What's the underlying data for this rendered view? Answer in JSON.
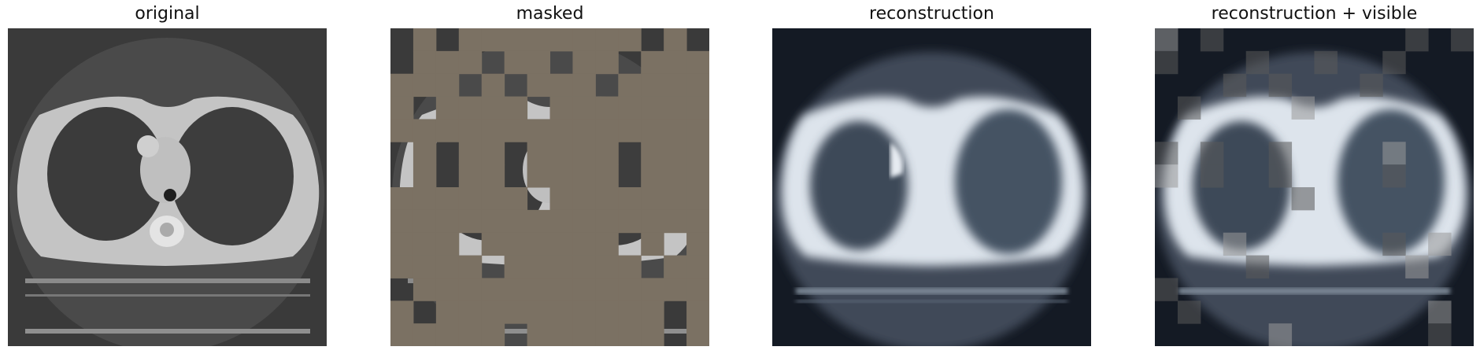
{
  "panels": [
    {
      "title": "original"
    },
    {
      "title": "masked"
    },
    {
      "title": "reconstruction"
    },
    {
      "title": "reconstruction + visible"
    }
  ],
  "colors": {
    "mask_fill": "#7b7163",
    "ct_background": "#3a3a3a",
    "recon_background": "#141a24"
  },
  "visible_patches": [
    [
      1,
      0
    ],
    [
      3,
      0
    ],
    [
      4,
      0
    ],
    [
      5,
      0
    ],
    [
      6,
      0
    ],
    [
      7,
      0
    ],
    [
      8,
      0
    ],
    [
      9,
      0
    ],
    [
      10,
      0
    ],
    [
      12,
      0
    ],
    [
      1,
      1
    ],
    [
      2,
      1
    ],
    [
      3,
      1
    ],
    [
      5,
      1
    ],
    [
      6,
      1
    ],
    [
      8,
      1
    ],
    [
      9,
      1
    ],
    [
      11,
      1
    ],
    [
      12,
      1
    ],
    [
      13,
      1
    ],
    [
      0,
      2
    ],
    [
      1,
      2
    ],
    [
      2,
      2
    ],
    [
      4,
      2
    ],
    [
      6,
      2
    ],
    [
      7,
      2
    ],
    [
      8,
      2
    ],
    [
      10,
      2
    ],
    [
      11,
      2
    ],
    [
      12,
      2
    ],
    [
      13,
      2
    ],
    [
      0,
      3
    ],
    [
      2,
      3
    ],
    [
      3,
      3
    ],
    [
      4,
      3
    ],
    [
      5,
      3
    ],
    [
      7,
      3
    ],
    [
      8,
      3
    ],
    [
      9,
      3
    ],
    [
      10,
      3
    ],
    [
      11,
      3
    ],
    [
      12,
      3
    ],
    [
      13,
      3
    ],
    [
      0,
      4
    ],
    [
      1,
      4
    ],
    [
      2,
      4
    ],
    [
      3,
      4
    ],
    [
      4,
      4
    ],
    [
      5,
      4
    ],
    [
      6,
      4
    ],
    [
      7,
      4
    ],
    [
      8,
      4
    ],
    [
      9,
      4
    ],
    [
      10,
      4
    ],
    [
      11,
      4
    ],
    [
      12,
      4
    ],
    [
      13,
      4
    ],
    [
      1,
      5
    ],
    [
      3,
      5
    ],
    [
      4,
      5
    ],
    [
      6,
      5
    ],
    [
      7,
      5
    ],
    [
      8,
      5
    ],
    [
      9,
      5
    ],
    [
      11,
      5
    ],
    [
      12,
      5
    ],
    [
      13,
      5
    ],
    [
      1,
      6
    ],
    [
      3,
      6
    ],
    [
      4,
      6
    ],
    [
      6,
      6
    ],
    [
      7,
      6
    ],
    [
      8,
      6
    ],
    [
      9,
      6
    ],
    [
      11,
      6
    ],
    [
      12,
      6
    ],
    [
      13,
      6
    ],
    [
      0,
      7
    ],
    [
      1,
      7
    ],
    [
      2,
      7
    ],
    [
      3,
      7
    ],
    [
      4,
      7
    ],
    [
      5,
      7
    ],
    [
      7,
      7
    ],
    [
      8,
      7
    ],
    [
      9,
      7
    ],
    [
      10,
      7
    ],
    [
      11,
      7
    ],
    [
      12,
      7
    ],
    [
      13,
      7
    ],
    [
      0,
      8
    ],
    [
      1,
      8
    ],
    [
      2,
      8
    ],
    [
      3,
      8
    ],
    [
      4,
      8
    ],
    [
      5,
      8
    ],
    [
      6,
      8
    ],
    [
      7,
      8
    ],
    [
      8,
      8
    ],
    [
      9,
      8
    ],
    [
      10,
      8
    ],
    [
      11,
      8
    ],
    [
      12,
      8
    ],
    [
      13,
      8
    ],
    [
      0,
      9
    ],
    [
      1,
      9
    ],
    [
      2,
      9
    ],
    [
      4,
      9
    ],
    [
      5,
      9
    ],
    [
      6,
      9
    ],
    [
      7,
      9
    ],
    [
      8,
      9
    ],
    [
      9,
      9
    ],
    [
      11,
      9
    ],
    [
      13,
      9
    ],
    [
      0,
      10
    ],
    [
      1,
      10
    ],
    [
      2,
      10
    ],
    [
      3,
      10
    ],
    [
      5,
      10
    ],
    [
      6,
      10
    ],
    [
      7,
      10
    ],
    [
      8,
      10
    ],
    [
      9,
      10
    ],
    [
      10,
      10
    ],
    [
      12,
      10
    ],
    [
      13,
      10
    ],
    [
      1,
      11
    ],
    [
      2,
      11
    ],
    [
      3,
      11
    ],
    [
      4,
      11
    ],
    [
      5,
      11
    ],
    [
      6,
      11
    ],
    [
      7,
      11
    ],
    [
      8,
      11
    ],
    [
      9,
      11
    ],
    [
      10,
      11
    ],
    [
      11,
      11
    ],
    [
      12,
      11
    ],
    [
      13,
      11
    ],
    [
      0,
      12
    ],
    [
      2,
      12
    ],
    [
      3,
      12
    ],
    [
      4,
      12
    ],
    [
      5,
      12
    ],
    [
      6,
      12
    ],
    [
      7,
      12
    ],
    [
      8,
      12
    ],
    [
      9,
      12
    ],
    [
      10,
      12
    ],
    [
      11,
      12
    ],
    [
      13,
      12
    ],
    [
      0,
      13
    ],
    [
      1,
      13
    ],
    [
      2,
      13
    ],
    [
      3,
      13
    ],
    [
      4,
      13
    ],
    [
      6,
      13
    ],
    [
      7,
      13
    ],
    [
      8,
      13
    ],
    [
      9,
      13
    ],
    [
      10,
      13
    ],
    [
      11,
      13
    ],
    [
      13,
      13
    ]
  ]
}
